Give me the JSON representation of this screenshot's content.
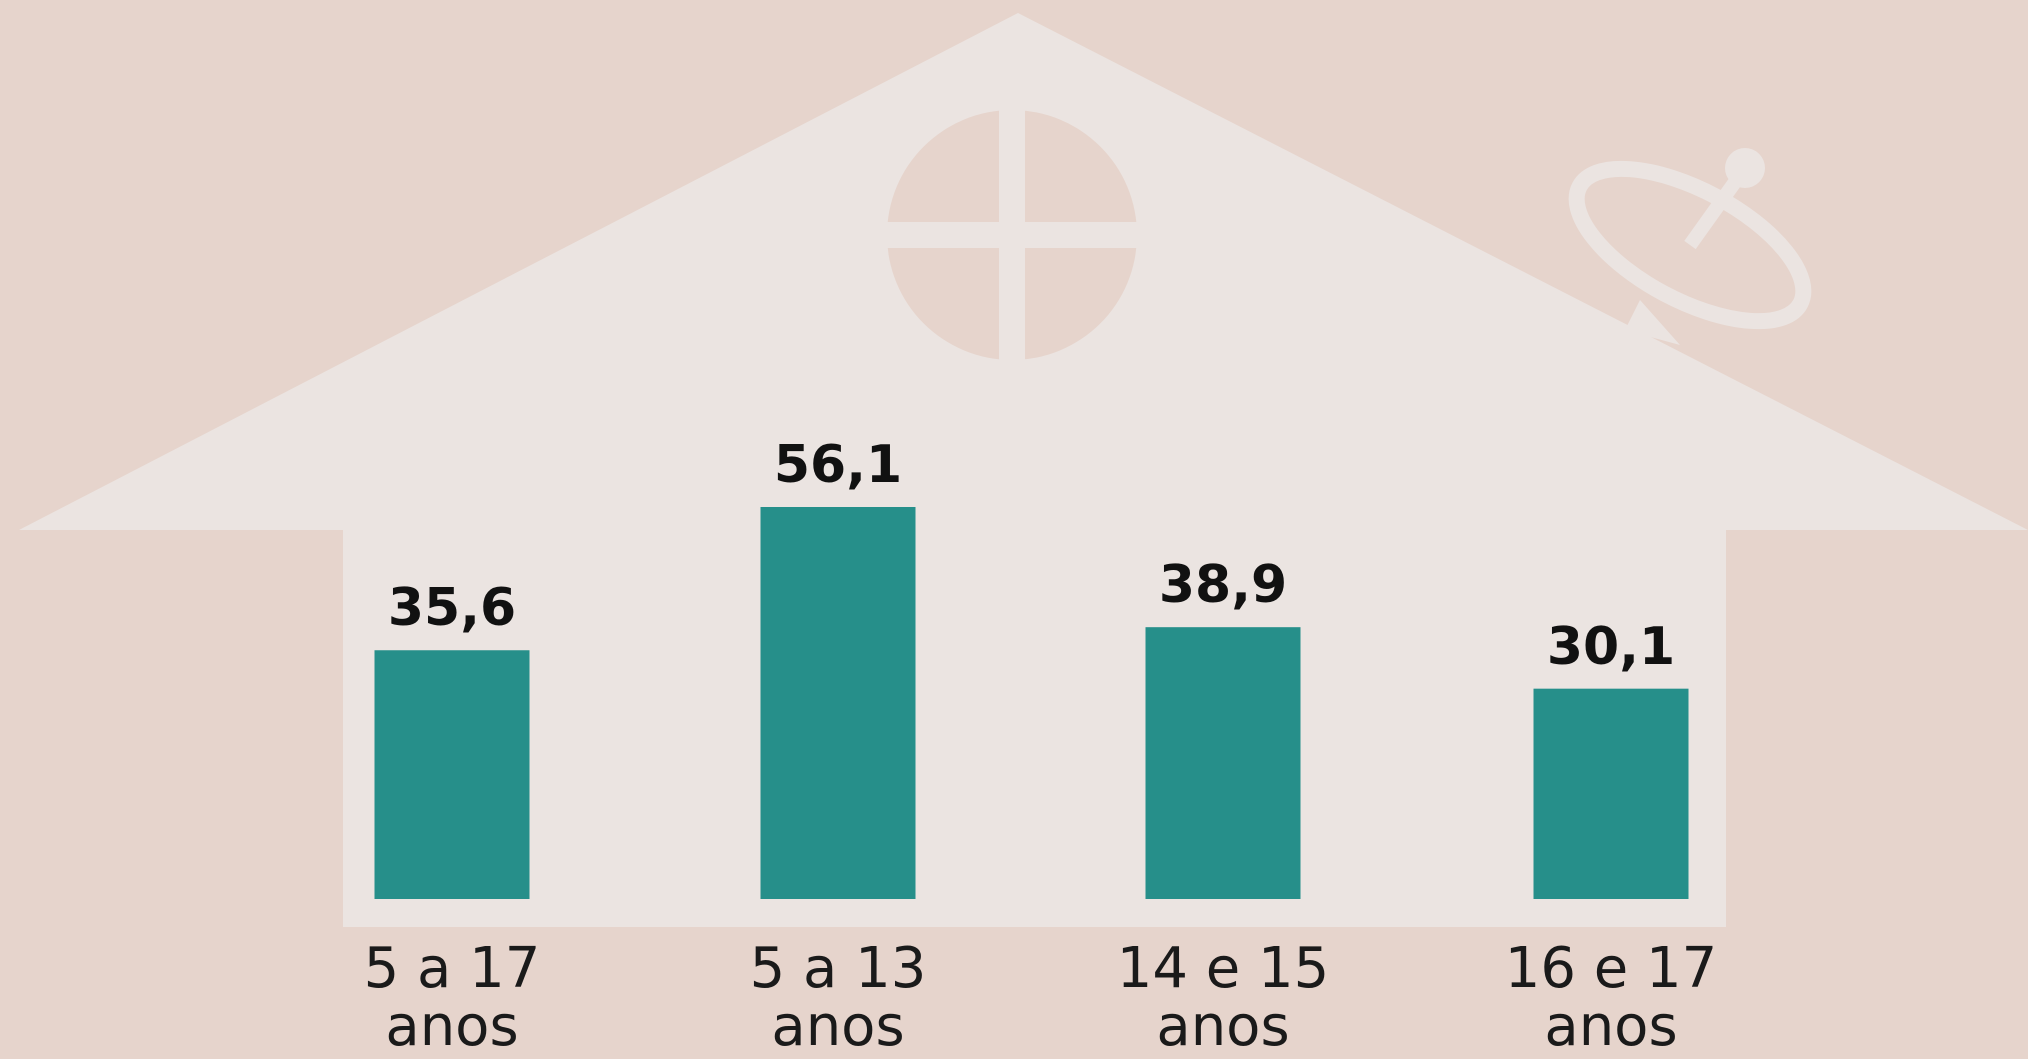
{
  "chart_data": {
    "type": "bar",
    "categories": [
      "5 a 17 anos",
      "5 a 13 anos",
      "14 e 15 anos",
      "16 e 17 anos"
    ],
    "values": [
      35.6,
      56.1,
      38.9,
      30.1
    ],
    "value_labels": [
      "35,6",
      "56,1",
      "38,9",
      "30,1"
    ],
    "color": "#268f8a"
  }
}
